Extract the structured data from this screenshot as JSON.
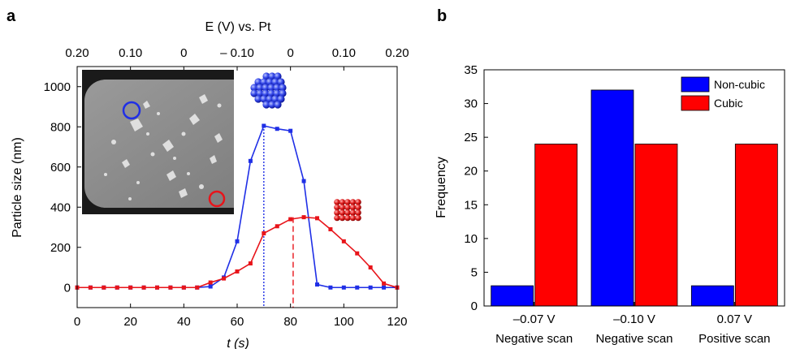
{
  "figure": {
    "panel_a_label": "a",
    "panel_b_label": "b"
  },
  "colors": {
    "blue_series": "#1f2fe6",
    "red_series": "#e8141a",
    "bar_blue": "#0000ff",
    "bar_red": "#ff0000"
  },
  "chart_data": [
    {
      "panel": "a",
      "type": "line",
      "xlabel": "t (s)",
      "ylabel": "Particle size (nm)",
      "top_axis_label": "E (V) vs. Pt",
      "xlim": [
        0,
        120
      ],
      "ylim": [
        -100,
        1100
      ],
      "x_ticks": [
        "0",
        "20",
        "40",
        "60",
        "80",
        "100",
        "120"
      ],
      "y_ticks": [
        "0",
        "200",
        "400",
        "600",
        "800",
        "1000"
      ],
      "top_ticks": [
        "0.20",
        "0.10",
        "0",
        "– 0.10",
        "0",
        "0.10",
        "0.20"
      ],
      "inset": {
        "description_icons": [
          "microscope-image-icon",
          "cubic-cluster-icon",
          "noncubic-cluster-icon"
        ]
      },
      "vlines": [
        {
          "x": 70,
          "series": "blue",
          "style": "dotted"
        },
        {
          "x": 81,
          "series": "red",
          "style": "dashed"
        }
      ],
      "series": [
        {
          "color": "blue",
          "x": [
            0,
            5,
            10,
            15,
            20,
            25,
            30,
            35,
            40,
            45,
            50,
            55,
            60,
            65,
            70,
            75,
            80,
            85,
            90,
            95,
            100,
            105,
            110,
            115,
            120
          ],
          "y": [
            0,
            0,
            0,
            0,
            0,
            0,
            0,
            0,
            0,
            0,
            5,
            50,
            230,
            630,
            805,
            790,
            780,
            530,
            15,
            0,
            0,
            0,
            0,
            0,
            0
          ]
        },
        {
          "color": "red",
          "x": [
            0,
            5,
            10,
            15,
            20,
            25,
            30,
            35,
            40,
            45,
            50,
            55,
            60,
            65,
            70,
            75,
            80,
            85,
            90,
            95,
            100,
            105,
            110,
            115,
            120
          ],
          "y": [
            0,
            0,
            0,
            0,
            0,
            0,
            0,
            0,
            0,
            0,
            25,
            45,
            80,
            120,
            270,
            305,
            340,
            350,
            345,
            290,
            230,
            170,
            100,
            20,
            0
          ]
        }
      ]
    },
    {
      "panel": "b",
      "type": "bar",
      "ylabel": "Frequency",
      "ylim": [
        0,
        35
      ],
      "y_ticks": [
        "0",
        "5",
        "10",
        "15",
        "20",
        "25",
        "30",
        "35"
      ],
      "categories": [
        "–0.07 V",
        "–0.10 V",
        "0.07 V"
      ],
      "category_sublabels": [
        "Negative scan",
        "Negative scan",
        "Positive scan"
      ],
      "legend_position": "top-right",
      "series": [
        {
          "name": "Non-cubic",
          "color": "#0000ff",
          "values": [
            3,
            32,
            3
          ]
        },
        {
          "name": "Cubic",
          "color": "#ff0000",
          "values": [
            24,
            24,
            24
          ]
        }
      ]
    }
  ]
}
